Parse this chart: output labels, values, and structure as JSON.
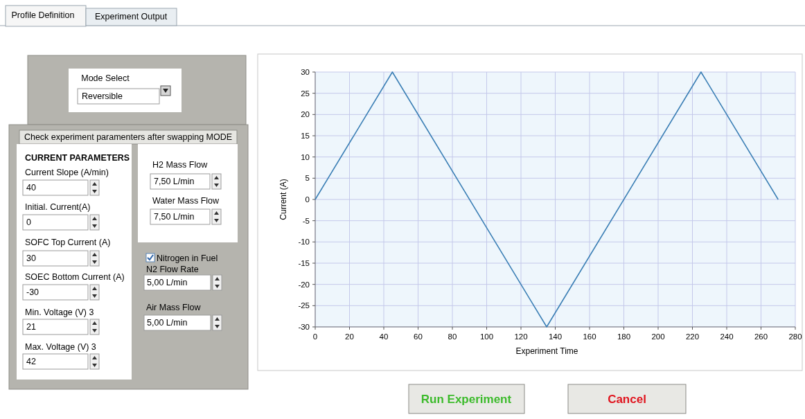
{
  "chart_data": [
    {
      "type": "other",
      "annotations": [
        "Profile Definition",
        "Experiment Output",
        "Mode Select",
        "Reversible",
        "Check experiment paramenters after swapping MODE",
        "CURRENT PARAMETERS",
        "Current Slope (A/min)",
        "40",
        "Initial. Current(A)",
        "0",
        "SOFC Top Current (A)",
        "30",
        "SOEC Bottom Current (A)",
        "-30",
        "Min. Voltage (V) 3",
        "21",
        "Max. Voltage (V) 3",
        "42",
        "H2 Mass Flow",
        "7,50 L/min",
        "Water Mass Flow",
        "7,50 L/min",
        "Nitrogen in Fuel",
        "N2 Flow Rate",
        "5,00 L/min",
        "Air Mass Flow",
        "5,00 L/min",
        "Run Experiment",
        "Cancel"
      ]
    },
    {
      "type": "line",
      "xlabel": "Experiment Time",
      "ylabel": "Current (A)",
      "x": [
        0,
        45,
        135,
        225,
        270
      ],
      "series": [
        {
          "color": "#3b7fb5",
          "values": [
            0,
            30,
            -30,
            30,
            0
          ]
        }
      ],
      "xlim": [
        0,
        280
      ],
      "xticks": [
        0,
        20,
        40,
        60,
        80,
        100,
        120,
        140,
        160,
        180,
        200,
        220,
        240,
        260,
        280
      ],
      "ylim": [
        -30,
        30
      ],
      "yticks": [
        -30,
        -25,
        -20,
        -15,
        -10,
        -5,
        0,
        5,
        10,
        15,
        20,
        25,
        30
      ],
      "grid": true
    }
  ]
}
